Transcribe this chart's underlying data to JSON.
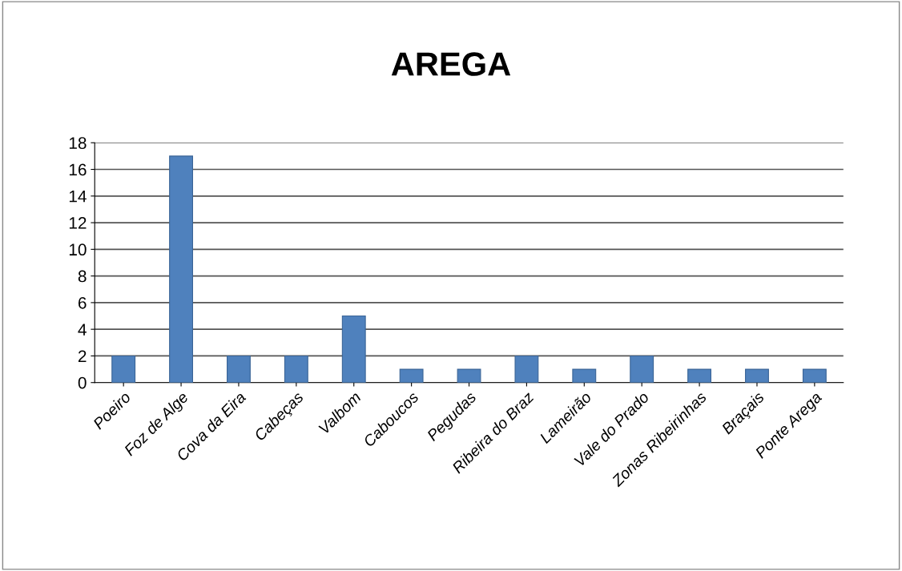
{
  "chart_data": {
    "type": "bar",
    "title": "AREGA",
    "categories": [
      "Poeiro",
      "Foz de Alge",
      "Cova da Eira",
      "Cabeças",
      "Valbom",
      "Caboucos",
      "Pegudas",
      "Ribeira do Braz",
      "Lameirão",
      "Vale do Prado",
      "Zonas Ribeirinhas",
      "Braçais",
      "Ponte Arega"
    ],
    "values": [
      2,
      17,
      2,
      2,
      5,
      1,
      1,
      2,
      1,
      2,
      1,
      1,
      1
    ],
    "color": "#4f81bd",
    "ylim": [
      0,
      18
    ],
    "yticks": [
      0,
      2,
      4,
      6,
      8,
      10,
      12,
      14,
      16,
      18
    ],
    "grid": "y",
    "legend": false
  }
}
